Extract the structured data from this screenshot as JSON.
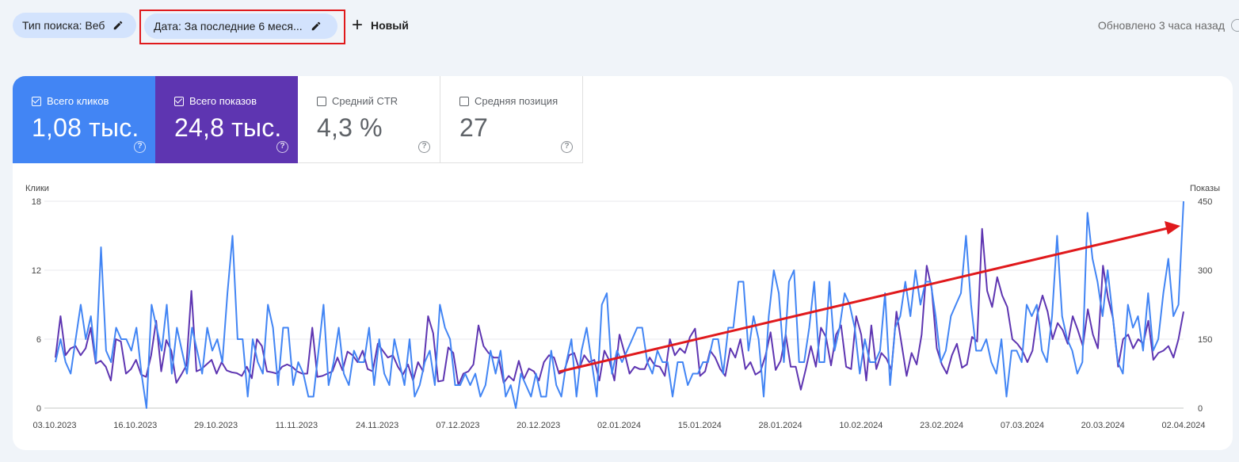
{
  "filters": {
    "search_type": "Тип поиска: Веб",
    "date": "Дата: За последние 6 меся...",
    "new_label": "Новый",
    "updated": "Обновлено 3 часа назад"
  },
  "metrics": {
    "clicks": {
      "label": "Всего кликов",
      "value": "1,08 тыс.",
      "color": "#4285f4",
      "checked": true
    },
    "impressions": {
      "label": "Всего показов",
      "value": "24,8 тыс.",
      "color": "#5e35b1",
      "checked": true
    },
    "ctr": {
      "label": "Средний CTR",
      "value": "4,3 %",
      "checked": false
    },
    "position": {
      "label": "Средняя позиция",
      "value": "27",
      "checked": false
    }
  },
  "chart_data": {
    "type": "line",
    "left_axis_label": "Клики",
    "right_axis_label": "Показы",
    "left_ticks": [
      "0",
      "6",
      "12",
      "18"
    ],
    "right_ticks": [
      "0",
      "150",
      "300",
      "450"
    ],
    "ylim_left": [
      0,
      18
    ],
    "ylim_right": [
      0,
      450
    ],
    "grid": true,
    "x_tick_labels": [
      "03.10.2023",
      "16.10.2023",
      "29.10.2023",
      "11.11.2023",
      "24.11.2023",
      "07.12.2023",
      "20.12.2023",
      "02.01.2024",
      "15.01.2024",
      "28.01.2024",
      "10.02.2024",
      "23.02.2024",
      "07.03.2024",
      "20.03.2024",
      "02.04.2024"
    ],
    "series": [
      {
        "axis": "left",
        "color": "#4285f4",
        "values": [
          4,
          6,
          4,
          3,
          6,
          9,
          6,
          8,
          4,
          14,
          5,
          4,
          7,
          6,
          6,
          5,
          7,
          3,
          0,
          9,
          7,
          5,
          9,
          3,
          7,
          5,
          3,
          7,
          5,
          3,
          7,
          5,
          6,
          4,
          10,
          15,
          6,
          6,
          1,
          6,
          4,
          3,
          9,
          7,
          2,
          7,
          7,
          2,
          4,
          3,
          1,
          1,
          5,
          9,
          2,
          4,
          7,
          3,
          2,
          5,
          4,
          4,
          7,
          2,
          6,
          3,
          2,
          6,
          4,
          2,
          6,
          1,
          2,
          4,
          5,
          2,
          9,
          7,
          6,
          2,
          2,
          3,
          2,
          3,
          1,
          2,
          5,
          3,
          5,
          1,
          2,
          0,
          3,
          2,
          1,
          3,
          1,
          1,
          5,
          2,
          1,
          4,
          6,
          1,
          5,
          7,
          4,
          1,
          9,
          10,
          3,
          5,
          4,
          5,
          6,
          7,
          7,
          4,
          3,
          5,
          4,
          4,
          1,
          4,
          4,
          2,
          3,
          3,
          4,
          4,
          6,
          6,
          3,
          7,
          7,
          11,
          11,
          5,
          8,
          6,
          1,
          8,
          12,
          10,
          4,
          11,
          12,
          4,
          4,
          7,
          11,
          4,
          4,
          11,
          5,
          7,
          10,
          9,
          7,
          3,
          6,
          4,
          4,
          5,
          10,
          2,
          7,
          8,
          11,
          8,
          12,
          9,
          11,
          11,
          8,
          4,
          5,
          8,
          9,
          10,
          15,
          9,
          5,
          5,
          6,
          4,
          3,
          6,
          1,
          5,
          5,
          4,
          9,
          8,
          9,
          5,
          4,
          8,
          15,
          8,
          6,
          5,
          3,
          4,
          17,
          13,
          11,
          8,
          12,
          8,
          4,
          3,
          9,
          7,
          8,
          5,
          10,
          5,
          6,
          10,
          13,
          8,
          9,
          18
        ]
      },
      {
        "axis": "right",
        "color": "#5e35b1",
        "values": [
          110,
          200,
          115,
          130,
          135,
          115,
          130,
          175,
          97,
          103,
          90,
          60,
          150,
          145,
          75,
          85,
          105,
          73,
          68,
          115,
          190,
          80,
          148,
          125,
          55,
          73,
          93,
          255,
          80,
          85,
          95,
          105,
          75,
          100,
          82,
          78,
          76,
          70,
          90,
          65,
          150,
          135,
          80,
          78,
          75,
          90,
          95,
          90,
          80,
          75,
          75,
          175,
          68,
          70,
          75,
          80,
          110,
          82,
          123,
          115,
          100,
          125,
          85,
          80,
          140,
          125,
          110,
          115,
          90,
          73,
          95,
          60,
          100,
          80,
          200,
          163,
          58,
          60,
          132,
          120,
          50,
          75,
          80,
          95,
          180,
          135,
          120,
          110,
          110,
          55,
          70,
          60,
          103,
          63,
          86,
          80,
          60,
          100,
          115,
          110,
          75,
          80,
          115,
          120,
          85,
          115,
          100,
          105,
          60,
          125,
          103,
          60,
          160,
          120,
          75,
          90,
          85,
          85,
          110,
          93,
          90,
          70,
          150,
          115,
          130,
          120,
          155,
          173,
          70,
          80,
          125,
          110,
          85,
          70,
          130,
          110,
          150,
          85,
          100,
          73,
          80,
          115,
          165,
          83,
          103,
          160,
          90,
          90,
          40,
          85,
          135,
          90,
          175,
          155,
          93,
          160,
          180,
          90,
          85,
          200,
          160,
          60,
          180,
          85,
          120,
          108,
          83,
          210,
          140,
          70,
          120,
          95,
          160,
          310,
          260,
          130,
          95,
          75,
          115,
          140,
          88,
          95,
          155,
          145,
          390,
          255,
          220,
          285,
          245,
          220,
          150,
          140,
          125,
          100,
          125,
          205,
          245,
          210,
          150,
          185,
          170,
          140,
          200,
          170,
          135,
          215,
          160,
          130,
          310,
          240,
          195,
          90,
          150,
          160,
          130,
          150,
          140,
          190,
          105,
          120,
          125,
          135,
          110,
          150,
          210
        ]
      }
    ],
    "annotation": "red trend arrow"
  }
}
